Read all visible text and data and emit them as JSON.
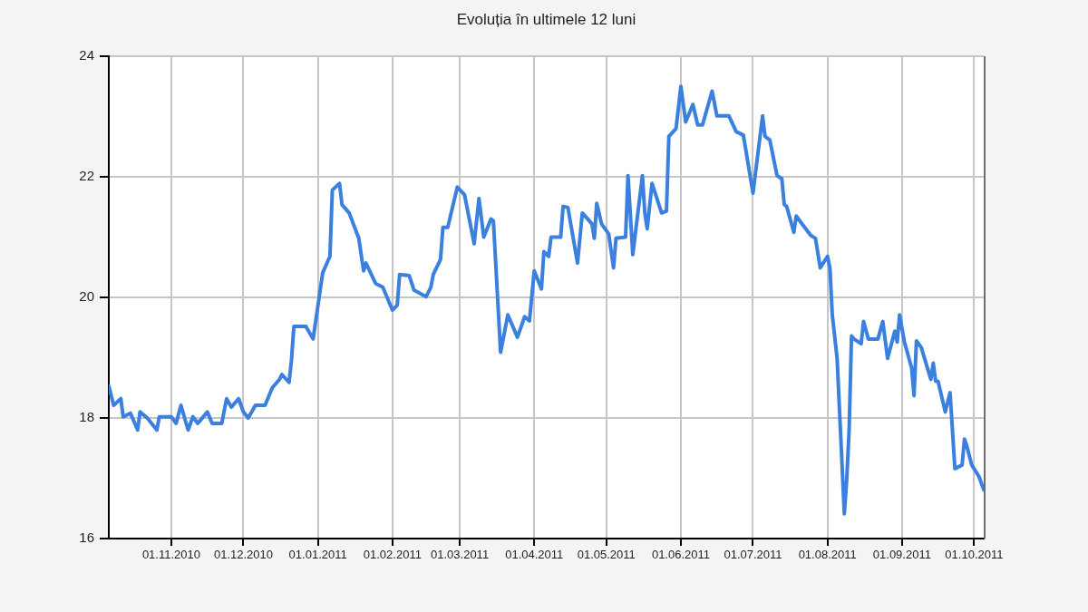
{
  "chart_data": {
    "type": "line",
    "title": "Evoluția în ultimele 12 luni",
    "x": [
      "2010-10-06",
      "2010-10-08",
      "2010-10-11",
      "2010-10-12",
      "2010-10-15",
      "2010-10-18",
      "2010-10-19",
      "2010-10-22",
      "2010-10-26",
      "2010-10-27",
      "2010-11-01",
      "2010-11-03",
      "2010-11-05",
      "2010-11-08",
      "2010-11-10",
      "2010-11-12",
      "2010-11-16",
      "2010-11-18",
      "2010-11-22",
      "2010-11-24",
      "2010-11-26",
      "2010-11-29",
      "2010-12-01",
      "2010-12-03",
      "2010-12-06",
      "2010-12-10",
      "2010-12-13",
      "2010-12-16",
      "2010-12-17",
      "2010-12-20",
      "2010-12-21",
      "2010-12-22",
      "2010-12-27",
      "2010-12-30",
      "2011-01-03",
      "2011-01-06",
      "2011-01-07",
      "2011-01-10",
      "2011-01-11",
      "2011-01-14",
      "2011-01-18",
      "2011-01-20",
      "2011-01-21",
      "2011-01-25",
      "2011-01-28",
      "2011-02-01",
      "2011-02-03",
      "2011-02-04",
      "2011-02-08",
      "2011-02-10",
      "2011-02-15",
      "2011-02-17",
      "2011-02-18",
      "2011-02-21",
      "2011-02-22",
      "2011-02-24",
      "2011-02-28",
      "2011-03-03",
      "2011-03-07",
      "2011-03-09",
      "2011-03-11",
      "2011-03-14",
      "2011-03-15",
      "2011-03-18",
      "2011-03-21",
      "2011-03-25",
      "2011-03-28",
      "2011-03-30",
      "2011-04-01",
      "2011-04-04",
      "2011-04-05",
      "2011-04-07",
      "2011-04-08",
      "2011-04-12",
      "2011-04-13",
      "2011-04-15",
      "2011-04-19",
      "2011-04-21",
      "2011-04-25",
      "2011-04-26",
      "2011-04-27",
      "2011-04-29",
      "2011-05-02",
      "2011-05-04",
      "2011-05-05",
      "2011-05-09",
      "2011-05-10",
      "2011-05-12",
      "2011-05-16",
      "2011-05-17",
      "2011-05-18",
      "2011-05-20",
      "2011-05-24",
      "2011-05-26",
      "2011-05-27",
      "2011-05-30",
      "2011-06-01",
      "2011-06-03",
      "2011-06-06",
      "2011-06-08",
      "2011-06-10",
      "2011-06-14",
      "2011-06-16",
      "2011-06-21",
      "2011-06-24",
      "2011-06-27",
      "2011-07-01",
      "2011-07-05",
      "2011-07-06",
      "2011-07-08",
      "2011-07-11",
      "2011-07-13",
      "2011-07-14",
      "2011-07-15",
      "2011-07-18",
      "2011-07-19",
      "2011-07-21",
      "2011-07-25",
      "2011-07-27",
      "2011-07-29",
      "2011-08-01",
      "2011-08-02",
      "2011-08-03",
      "2011-08-05",
      "2011-08-08",
      "2011-08-09",
      "2011-08-10",
      "2011-08-11",
      "2011-08-12",
      "2011-08-15",
      "2011-08-16",
      "2011-08-18",
      "2011-08-22",
      "2011-08-24",
      "2011-08-26",
      "2011-08-29",
      "2011-08-30",
      "2011-08-31",
      "2011-09-02",
      "2011-09-05",
      "2011-09-06",
      "2011-09-07",
      "2011-09-09",
      "2011-09-13",
      "2011-09-14",
      "2011-09-15",
      "2011-09-16",
      "2011-09-19",
      "2011-09-21",
      "2011-09-23",
      "2011-09-26",
      "2011-09-27",
      "2011-09-28",
      "2011-09-30",
      "2011-10-03",
      "2011-10-05"
    ],
    "series": [
      {
        "color": "#3b80de",
        "values": [
          18.53,
          18.21,
          18.32,
          18.02,
          18.08,
          17.8,
          18.1,
          18.0,
          17.8,
          18.02,
          18.02,
          17.91,
          18.21,
          17.8,
          18.02,
          17.91,
          18.1,
          17.91,
          17.91,
          18.32,
          18.18,
          18.32,
          18.1,
          18.0,
          18.21,
          18.21,
          18.5,
          18.64,
          18.72,
          18.59,
          18.96,
          19.52,
          19.52,
          19.31,
          20.41,
          20.68,
          21.78,
          21.89,
          21.54,
          21.4,
          20.98,
          20.44,
          20.57,
          20.23,
          20.17,
          19.79,
          19.87,
          20.38,
          20.36,
          20.12,
          20.01,
          20.17,
          20.38,
          20.63,
          21.16,
          21.16,
          21.83,
          21.7,
          20.89,
          21.64,
          21.0,
          21.3,
          21.27,
          19.09,
          19.71,
          19.34,
          19.68,
          19.61,
          20.44,
          20.14,
          20.76,
          20.68,
          21.0,
          21.0,
          21.51,
          21.49,
          20.57,
          21.4,
          21.22,
          20.98,
          21.56,
          21.22,
          21.05,
          20.49,
          20.98,
          21.0,
          22.02,
          20.71,
          22.02,
          21.4,
          21.14,
          21.89,
          21.4,
          21.43,
          22.67,
          22.8,
          23.5,
          22.91,
          23.2,
          22.86,
          22.86,
          23.42,
          23.01,
          23.01,
          22.75,
          22.69,
          21.73,
          23.01,
          22.67,
          22.61,
          22.02,
          21.97,
          21.54,
          21.51,
          21.08,
          21.35,
          21.24,
          21.03,
          20.98,
          20.49,
          20.68,
          20.49,
          19.71,
          18.99,
          16.41,
          16.98,
          17.8,
          19.36,
          19.31,
          19.23,
          19.6,
          19.31,
          19.31,
          19.6,
          18.99,
          19.44,
          19.26,
          19.71,
          19.26,
          18.83,
          18.37,
          19.28,
          19.17,
          18.64,
          18.91,
          18.61,
          18.61,
          18.1,
          18.42,
          17.16,
          17.22,
          17.65,
          17.53,
          17.22,
          17.03,
          16.81
        ]
      }
    ],
    "xlim": [
      "2010-10-06",
      "2011-10-05"
    ],
    "xticks": [
      {
        "value": "2010-11-01",
        "label": "01.11.2010"
      },
      {
        "value": "2010-12-01",
        "label": "01.12.2010"
      },
      {
        "value": "2011-01-01",
        "label": "01.01.2011"
      },
      {
        "value": "2011-02-01",
        "label": "01.02.2011"
      },
      {
        "value": "2011-03-01",
        "label": "01.03.2011"
      },
      {
        "value": "2011-04-01",
        "label": "01.04.2011"
      },
      {
        "value": "2011-05-01",
        "label": "01.05.2011"
      },
      {
        "value": "2011-06-01",
        "label": "01.06.2011"
      },
      {
        "value": "2011-07-01",
        "label": "01.07.2011"
      },
      {
        "value": "2011-08-01",
        "label": "01.08.2011"
      },
      {
        "value": "2011-09-01",
        "label": "01.09.2011"
      },
      {
        "value": "2011-10-01",
        "label": "01.10.2011"
      }
    ],
    "ylim": [
      16,
      24
    ],
    "yticks": [
      16,
      18,
      20,
      22,
      24
    ],
    "grid": true,
    "legend": false,
    "line_style": "solid"
  }
}
